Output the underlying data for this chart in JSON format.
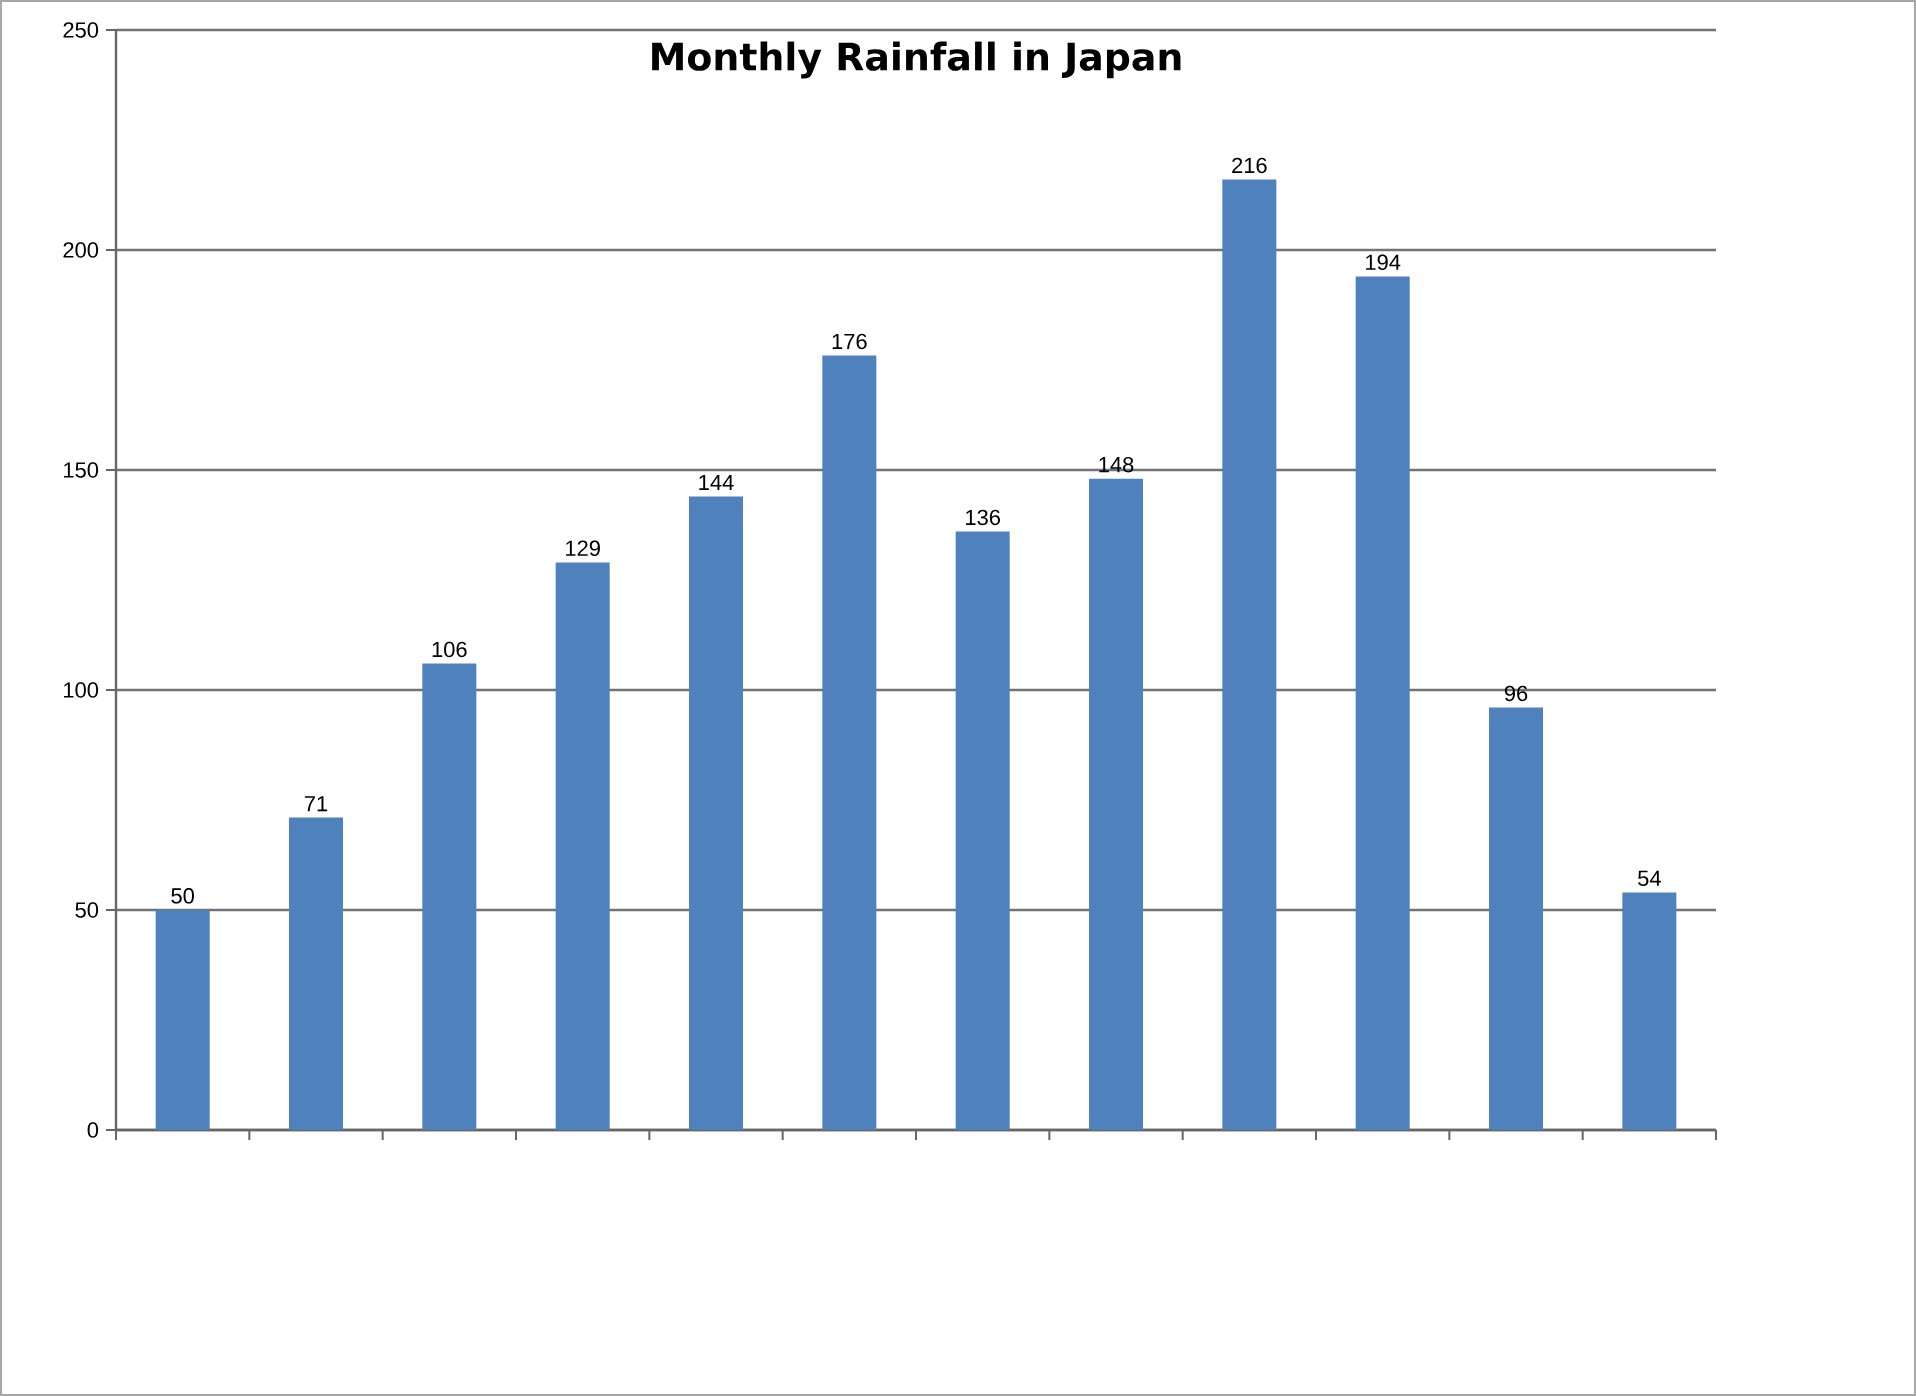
{
  "chart_data": {
    "type": "bar",
    "title": "Monthly Rainfall in Japan",
    "categories": [
      null,
      null,
      null,
      null,
      null,
      null,
      null,
      null,
      null,
      null,
      null,
      null
    ],
    "values": [
      50,
      71,
      106,
      129,
      144,
      176,
      136,
      148,
      216,
      194,
      96,
      54
    ],
    "color": "#4f81bd",
    "ylim": [
      0,
      250
    ],
    "yticks": [
      0,
      50,
      100,
      150,
      200,
      250
    ],
    "grid": "y",
    "data_labels": true
  }
}
